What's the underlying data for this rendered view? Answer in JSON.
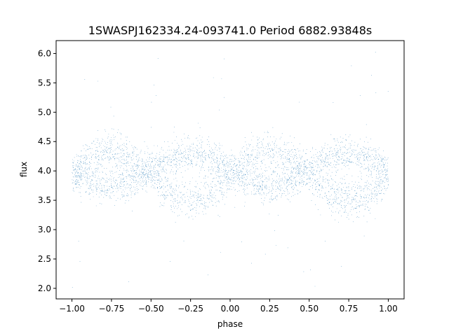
{
  "chart_data": {
    "type": "scatter",
    "title": "1SWASPJ162334.24-093741.0 Period 6882.93848s",
    "xlabel": "phase",
    "ylabel": "flux",
    "xlim": [
      -1.1,
      1.1
    ],
    "ylim": [
      1.82,
      6.22
    ],
    "x_ticks": [
      -1.0,
      -0.75,
      -0.5,
      -0.25,
      0.0,
      0.25,
      0.5,
      0.75,
      1.0
    ],
    "x_tick_labels": [
      "−1.00",
      "−0.75",
      "−0.50",
      "−0.25",
      "0.00",
      "0.25",
      "0.50",
      "0.75",
      "1.00"
    ],
    "y_ticks": [
      2.0,
      2.5,
      3.0,
      3.5,
      4.0,
      4.5,
      5.0,
      5.5,
      6.0
    ],
    "y_tick_labels": [
      "2.0",
      "2.5",
      "3.0",
      "3.5",
      "4.0",
      "4.5",
      "5.0",
      "5.5",
      "6.0"
    ],
    "grid": false,
    "legend": false,
    "marker_color": "#1f77b4",
    "series": [
      {
        "x_range": [
          -1.0,
          1.0
        ],
        "upper_branch": {
          "mean": 4.02,
          "amplitude": 0.28,
          "peak_phase": -0.25,
          "scatter": 0.15
        },
        "lower_branch": {
          "mean": 3.92,
          "amplitude": 0.42,
          "peak_phase": 0.25,
          "scatter": 0.17
        },
        "outlier_range": [
          2.0,
          6.05
        ]
      }
    ]
  }
}
